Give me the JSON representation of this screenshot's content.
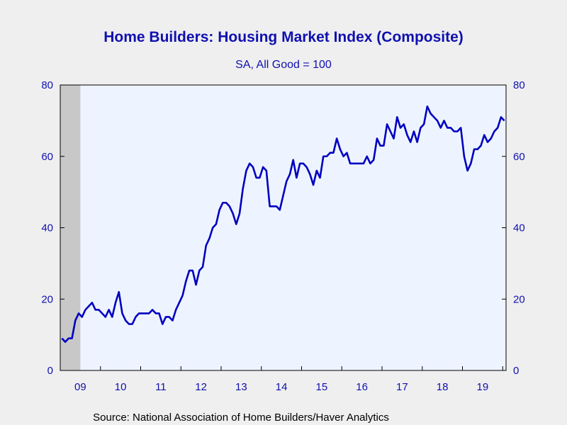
{
  "chart_data": {
    "type": "line",
    "title": "Home Builders: Housing Market Index (Composite)",
    "subtitle": "SA, All Good = 100",
    "source": "Source:  National Association of Home Builders/Haver Analytics",
    "ylim": [
      0,
      80
    ],
    "y_ticks": [
      "0",
      "20",
      "40",
      "60",
      "80"
    ],
    "x_ticks": [
      "09",
      "10",
      "11",
      "12",
      "13",
      "14",
      "15",
      "16",
      "17",
      "18",
      "19"
    ],
    "grid": false,
    "recession_shading": {
      "start": "2009-01",
      "end": "2009-06",
      "color": "#c8c8c8"
    },
    "colors": {
      "line": "#0000c0",
      "plot_bg": "#eef4ff",
      "axis": "#000000",
      "text": "#1010b0"
    },
    "series": [
      {
        "values": [
          [
            "2009-01",
            9
          ],
          [
            "2009-02",
            8
          ],
          [
            "2009-03",
            9
          ],
          [
            "2009-04",
            9
          ],
          [
            "2009-05",
            14
          ],
          [
            "2009-06",
            16
          ],
          [
            "2009-07",
            15
          ],
          [
            "2009-08",
            17
          ],
          [
            "2009-09",
            18
          ],
          [
            "2009-10",
            19
          ],
          [
            "2009-11",
            17
          ],
          [
            "2009-12",
            17
          ],
          [
            "2010-01",
            16
          ],
          [
            "2010-02",
            15
          ],
          [
            "2010-03",
            17
          ],
          [
            "2010-04",
            15
          ],
          [
            "2010-05",
            19
          ],
          [
            "2010-06",
            22
          ],
          [
            "2010-07",
            16
          ],
          [
            "2010-08",
            14
          ],
          [
            "2010-09",
            13
          ],
          [
            "2010-10",
            13
          ],
          [
            "2010-11",
            15
          ],
          [
            "2010-12",
            16
          ],
          [
            "2011-01",
            16
          ],
          [
            "2011-02",
            16
          ],
          [
            "2011-03",
            16
          ],
          [
            "2011-04",
            17
          ],
          [
            "2011-05",
            16
          ],
          [
            "2011-06",
            16
          ],
          [
            "2011-07",
            13
          ],
          [
            "2011-08",
            15
          ],
          [
            "2011-09",
            15
          ],
          [
            "2011-10",
            14
          ],
          [
            "2011-11",
            17
          ],
          [
            "2011-12",
            19
          ],
          [
            "2012-01",
            21
          ],
          [
            "2012-02",
            25
          ],
          [
            "2012-03",
            28
          ],
          [
            "2012-04",
            28
          ],
          [
            "2012-05",
            24
          ],
          [
            "2012-06",
            28
          ],
          [
            "2012-07",
            29
          ],
          [
            "2012-08",
            35
          ],
          [
            "2012-09",
            37
          ],
          [
            "2012-10",
            40
          ],
          [
            "2012-11",
            41
          ],
          [
            "2012-12",
            45
          ],
          [
            "2013-01",
            47
          ],
          [
            "2013-02",
            47
          ],
          [
            "2013-03",
            46
          ],
          [
            "2013-04",
            44
          ],
          [
            "2013-05",
            41
          ],
          [
            "2013-06",
            44
          ],
          [
            "2013-07",
            51
          ],
          [
            "2013-08",
            56
          ],
          [
            "2013-09",
            58
          ],
          [
            "2013-10",
            57
          ],
          [
            "2013-11",
            54
          ],
          [
            "2013-12",
            54
          ],
          [
            "2014-01",
            57
          ],
          [
            "2014-02",
            56
          ],
          [
            "2014-03",
            46
          ],
          [
            "2014-04",
            46
          ],
          [
            "2014-05",
            46
          ],
          [
            "2014-06",
            45
          ],
          [
            "2014-07",
            49
          ],
          [
            "2014-08",
            53
          ],
          [
            "2014-09",
            55
          ],
          [
            "2014-10",
            59
          ],
          [
            "2014-11",
            54
          ],
          [
            "2014-12",
            58
          ],
          [
            "2015-01",
            58
          ],
          [
            "2015-02",
            57
          ],
          [
            "2015-03",
            55
          ],
          [
            "2015-04",
            52
          ],
          [
            "2015-05",
            56
          ],
          [
            "2015-06",
            54
          ],
          [
            "2015-07",
            60
          ],
          [
            "2015-08",
            60
          ],
          [
            "2015-09",
            61
          ],
          [
            "2015-10",
            61
          ],
          [
            "2015-11",
            65
          ],
          [
            "2015-12",
            62
          ],
          [
            "2016-01",
            60
          ],
          [
            "2016-02",
            61
          ],
          [
            "2016-03",
            58
          ],
          [
            "2016-04",
            58
          ],
          [
            "2016-05",
            58
          ],
          [
            "2016-06",
            58
          ],
          [
            "2016-07",
            58
          ],
          [
            "2016-08",
            60
          ],
          [
            "2016-09",
            58
          ],
          [
            "2016-10",
            59
          ],
          [
            "2016-11",
            65
          ],
          [
            "2016-12",
            63
          ],
          [
            "2017-01",
            63
          ],
          [
            "2017-02",
            69
          ],
          [
            "2017-03",
            67
          ],
          [
            "2017-04",
            65
          ],
          [
            "2017-05",
            71
          ],
          [
            "2017-06",
            68
          ],
          [
            "2017-07",
            69
          ],
          [
            "2017-08",
            66
          ],
          [
            "2017-09",
            64
          ],
          [
            "2017-10",
            67
          ],
          [
            "2017-11",
            64
          ],
          [
            "2017-12",
            68
          ],
          [
            "2018-01",
            69
          ],
          [
            "2018-02",
            74
          ],
          [
            "2018-03",
            72
          ],
          [
            "2018-04",
            71
          ],
          [
            "2018-05",
            70
          ],
          [
            "2018-06",
            68
          ],
          [
            "2018-07",
            70
          ],
          [
            "2018-08",
            68
          ],
          [
            "2018-09",
            68
          ],
          [
            "2018-10",
            67
          ],
          [
            "2018-11",
            67
          ],
          [
            "2018-12",
            68
          ],
          [
            "2019-01",
            60
          ],
          [
            "2019-02",
            56
          ],
          [
            "2019-03",
            58
          ],
          [
            "2019-04",
            62
          ],
          [
            "2019-05",
            62
          ],
          [
            "2019-06",
            63
          ],
          [
            "2019-07",
            66
          ],
          [
            "2019-08",
            64
          ],
          [
            "2019-09",
            65
          ],
          [
            "2019-10",
            67
          ],
          [
            "2019-11",
            68
          ],
          [
            "2019-12",
            71
          ],
          [
            "2020-01",
            70
          ]
        ]
      }
    ]
  }
}
